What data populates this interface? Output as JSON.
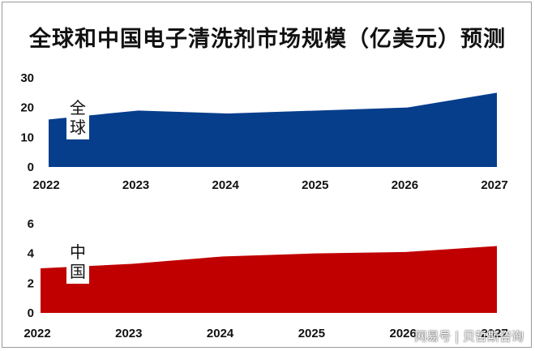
{
  "title": "全球和中国电子清洗剂市场规模（亿美元）预测",
  "watermark": "网易号 | 贝哲斯咨询",
  "colors": {
    "global": "#063e8c",
    "china": "#c00000",
    "background": "#ffffff"
  },
  "chart_data": [
    {
      "type": "area",
      "series_label": "全球",
      "categories": [
        "2022",
        "2023",
        "2024",
        "2025",
        "2026",
        "2027"
      ],
      "values": [
        16,
        19,
        18,
        19,
        20,
        25
      ],
      "yticks": [
        0,
        10,
        20,
        30
      ],
      "ylim": [
        0,
        30
      ],
      "grid": false,
      "legend": "none"
    },
    {
      "type": "area",
      "series_label": "中国",
      "categories": [
        "2022",
        "2023",
        "2024",
        "2025",
        "2026",
        "2027"
      ],
      "values": [
        3.0,
        3.3,
        3.8,
        4.0,
        4.1,
        4.5
      ],
      "yticks": [
        0,
        2,
        4,
        6
      ],
      "ylim": [
        0,
        6
      ],
      "grid": false,
      "legend": "none"
    }
  ]
}
